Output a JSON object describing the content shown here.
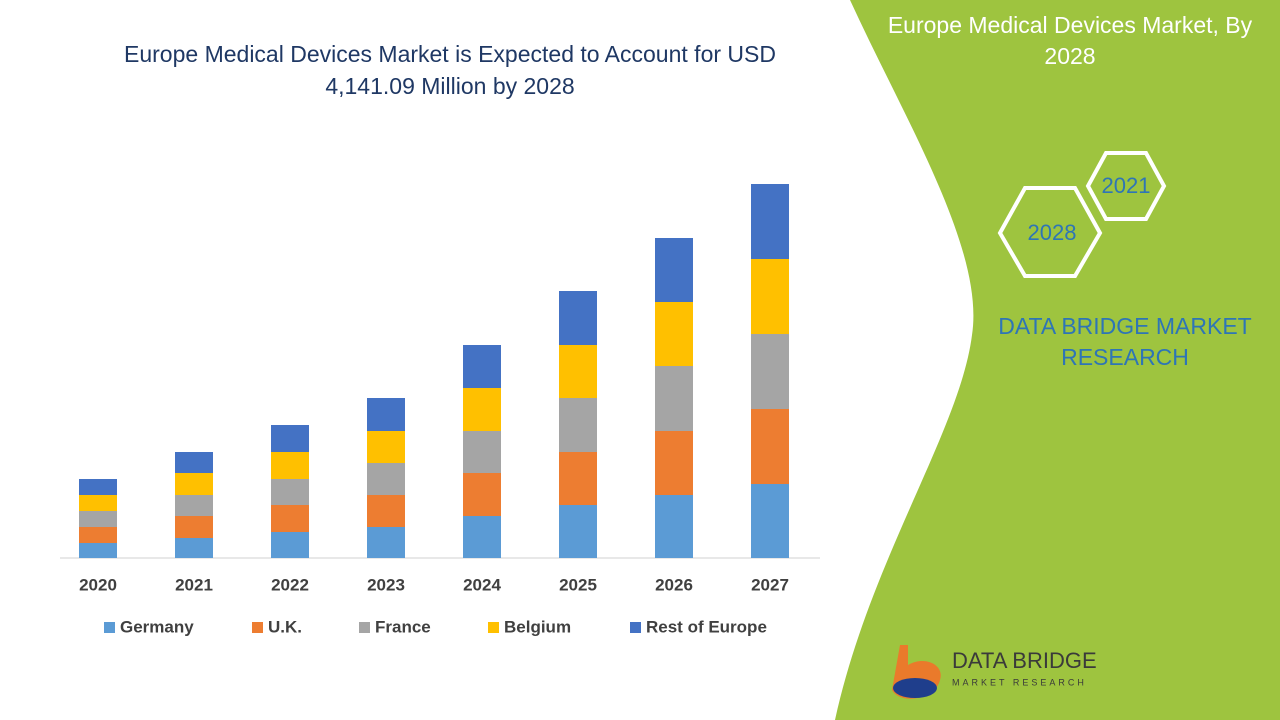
{
  "chart_data": {
    "type": "bar",
    "stacked": true,
    "title": "Europe Medical Devices Market is Expected to Account for USD 4,141.09 Million by 2028",
    "categories": [
      "2020",
      "2021",
      "2022",
      "2023",
      "2024",
      "2025",
      "2026",
      "2027"
    ],
    "series": [
      {
        "name": "Germany",
        "color": "#5b9bd5",
        "values": [
          15,
          20,
          26,
          31,
          42,
          53,
          63,
          74
        ]
      },
      {
        "name": "U.K.",
        "color": "#ed7d31",
        "values": [
          16,
          22,
          27,
          32,
          43,
          53,
          64,
          75
        ]
      },
      {
        "name": "France",
        "color": "#a5a5a5",
        "values": [
          16,
          21,
          26,
          32,
          42,
          54,
          65,
          75
        ]
      },
      {
        "name": "Belgium",
        "color": "#ffc000",
        "values": [
          16,
          22,
          27,
          32,
          43,
          53,
          64,
          75
        ]
      },
      {
        "name": "Rest of Europe",
        "color": "#4472c4",
        "values": [
          16,
          21,
          27,
          33,
          43,
          54,
          64,
          75
        ]
      }
    ],
    "ylim": [
      0,
      400
    ],
    "legend": "bottom"
  },
  "panel": {
    "title": "Europe Medical Devices Market, By 2028",
    "hex_a": "2028",
    "hex_b": "2021",
    "brand": "DATA BRIDGE MARKET RESEARCH",
    "logo_name": "DATA BRIDGE",
    "logo_sub": "MARKET RESEARCH"
  }
}
